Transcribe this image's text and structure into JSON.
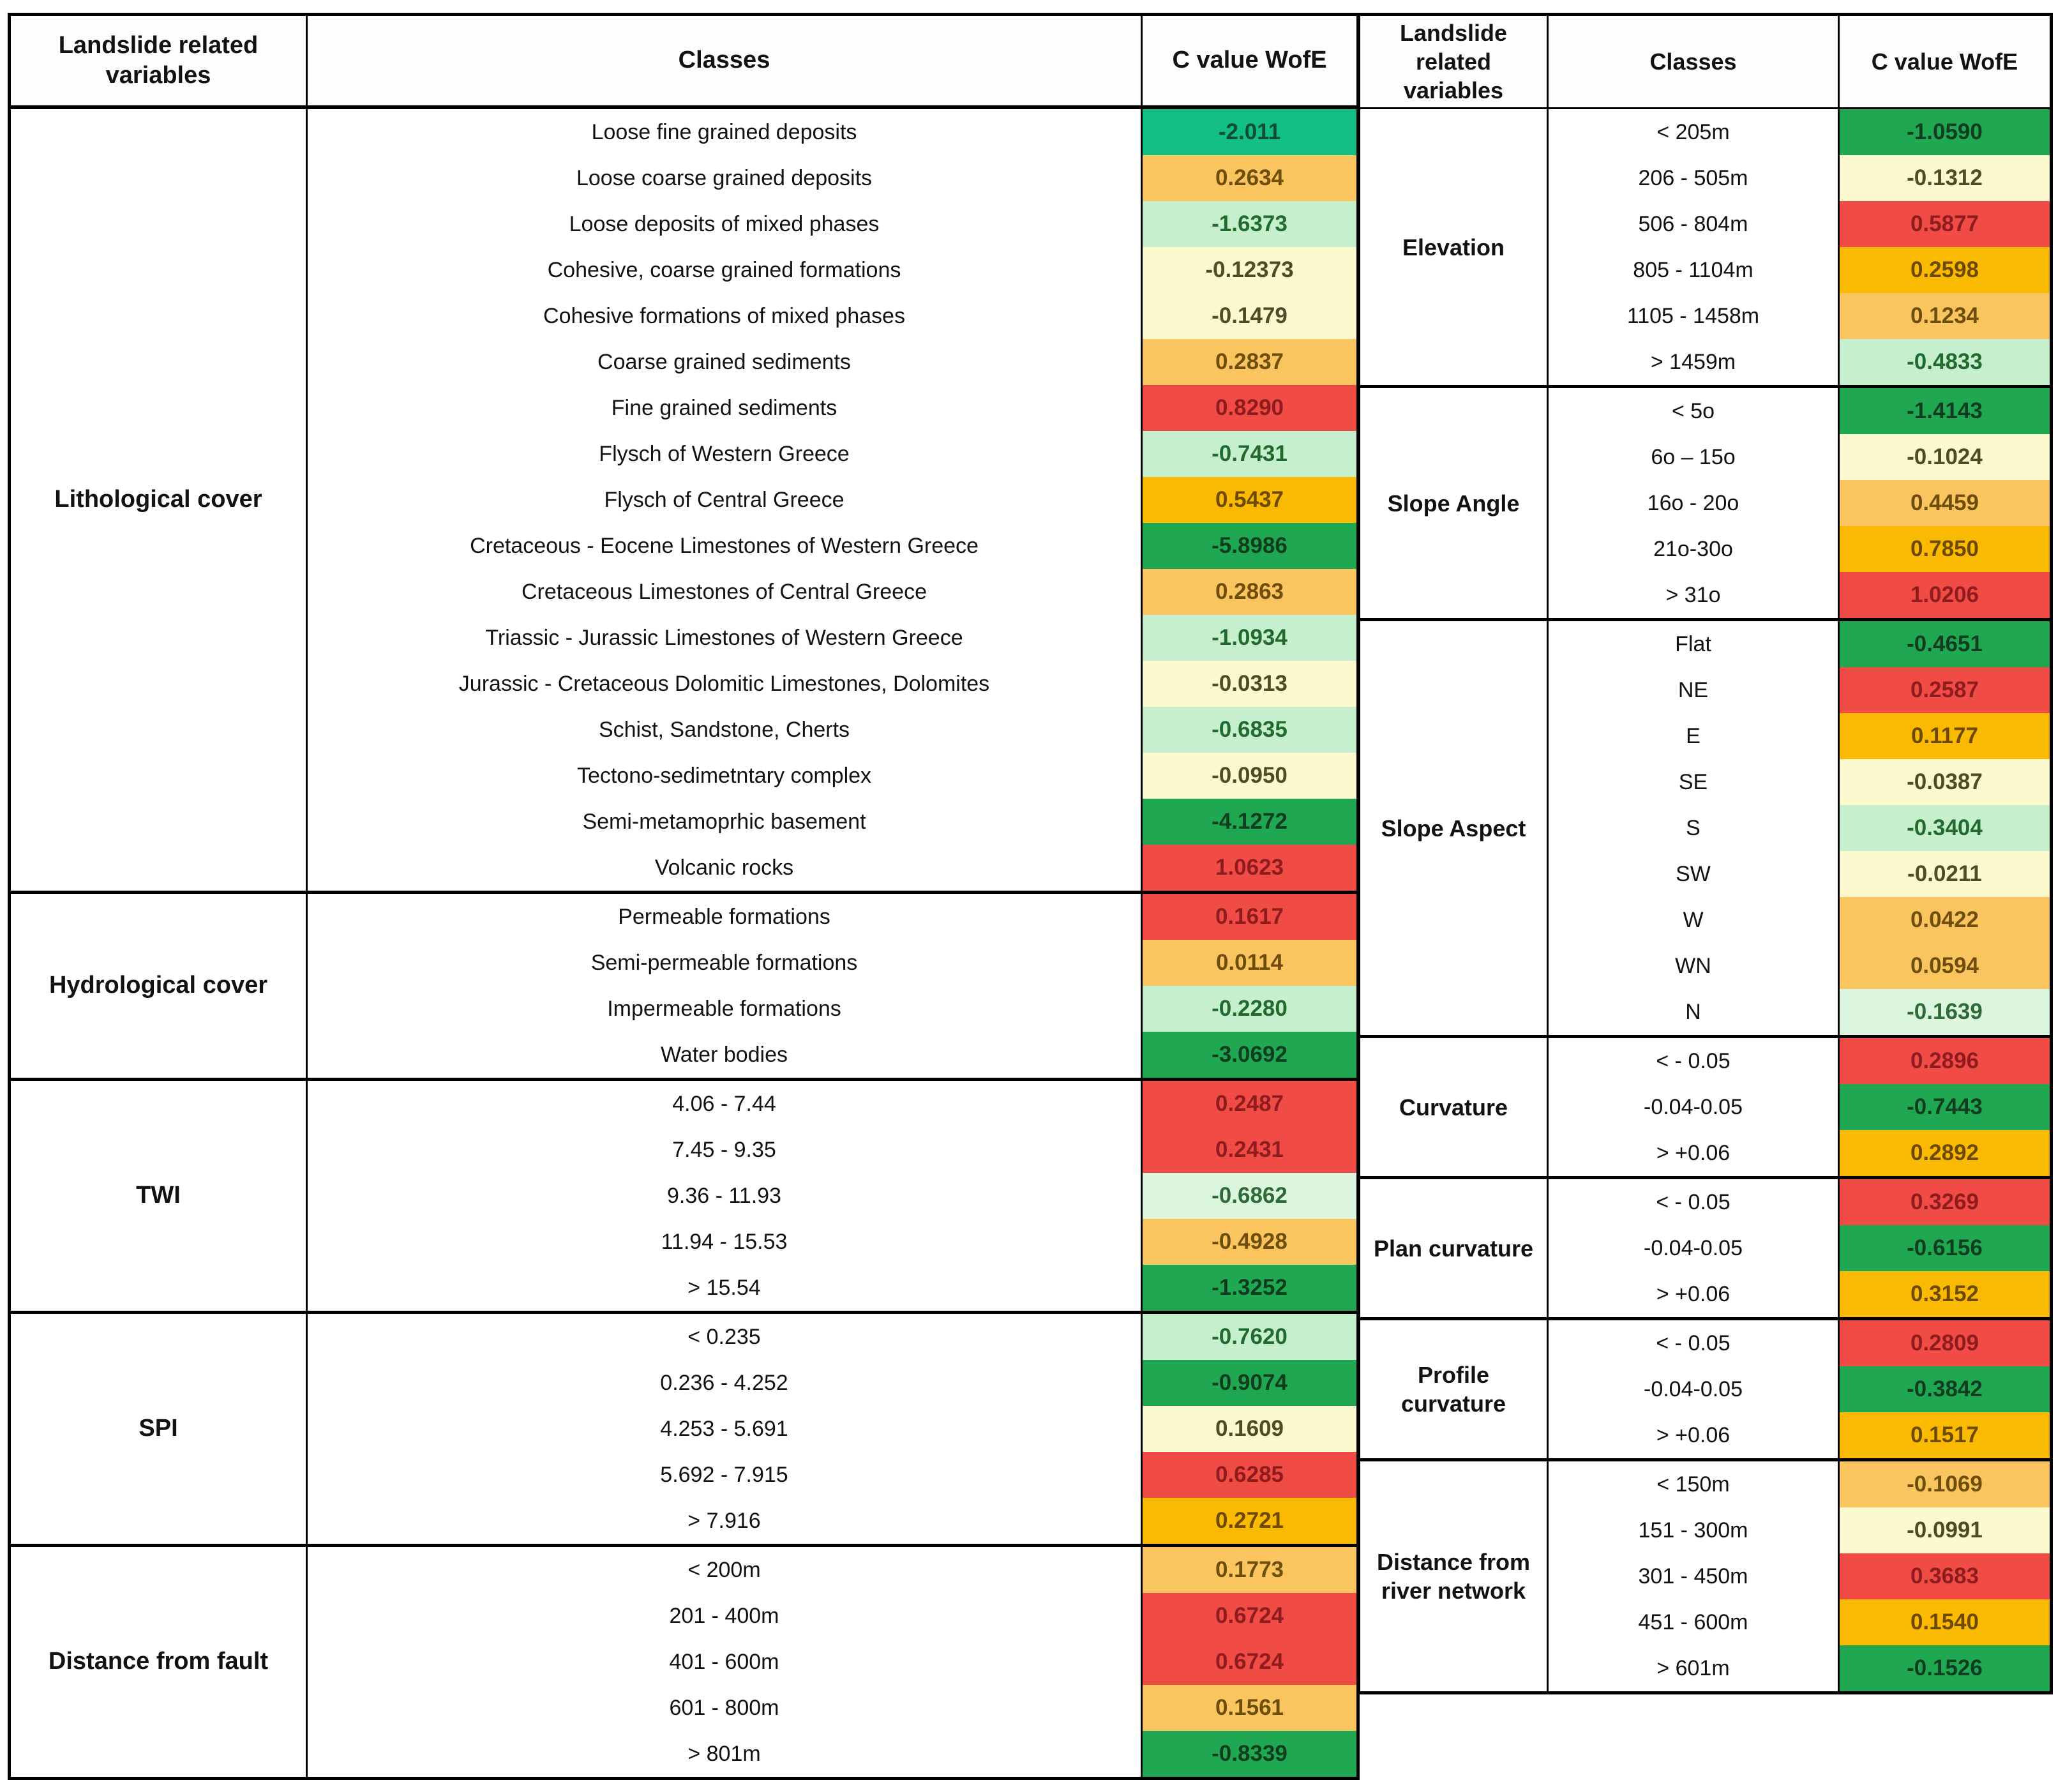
{
  "headers": [
    "Landslide related variables",
    "Classes",
    "C value WofE"
  ],
  "palette": {
    "teal": "#10BE86",
    "green": "#20A751",
    "lightgreen": "#C6EFCE",
    "palegreen": "#DCF5DF",
    "paleyellow": "#FCF9CE",
    "lightorange": "#FAC45F",
    "amber": "#FBBA02",
    "red": "#F14B46"
  },
  "text_colors": {
    "teal": "#0A4D33",
    "green": "#103D20",
    "lightgreen": "#226B2F",
    "palegreen": "#2E6B38",
    "paleyellow": "#4E4C28",
    "lightorange": "#6E4E0B",
    "amber": "#6E4A00",
    "red": "#8E1C1F"
  },
  "left_table": {
    "groups": [
      {
        "variable": "Lithological cover",
        "rows": [
          {
            "cls": "Loose fine grained deposits",
            "value": "-2.011",
            "color": "teal"
          },
          {
            "cls": "Loose coarse grained deposits",
            "value": "0.2634",
            "color": "lightorange"
          },
          {
            "cls": "Loose deposits of mixed phases",
            "value": "-1.6373",
            "color": "lightgreen"
          },
          {
            "cls": "Cohesive, coarse grained formations",
            "value": "-0.12373",
            "color": "paleyellow"
          },
          {
            "cls": "Cohesive formations of mixed phases",
            "value": "-0.1479",
            "color": "paleyellow"
          },
          {
            "cls": "Coarse grained sediments",
            "value": "0.2837",
            "color": "lightorange"
          },
          {
            "cls": "Fine grained sediments",
            "value": "0.8290",
            "color": "red"
          },
          {
            "cls": "Flysch of Western Greece",
            "value": "-0.7431",
            "color": "lightgreen"
          },
          {
            "cls": "Flysch of Central Greece",
            "value": "0.5437",
            "color": "amber"
          },
          {
            "cls": "Cretaceous - Eocene Limestones of Western Greece",
            "value": "-5.8986",
            "color": "green"
          },
          {
            "cls": "Cretaceous Limestones of Central Greece",
            "value": "0.2863",
            "color": "lightorange"
          },
          {
            "cls": "Triassic - Jurassic Limestones of Western Greece",
            "value": "-1.0934",
            "color": "lightgreen"
          },
          {
            "cls": "Jurassic - Cretaceous Dolomitic Limestones, Dolomites",
            "value": "-0.0313",
            "color": "paleyellow"
          },
          {
            "cls": "Schist, Sandstone, Cherts",
            "value": "-0.6835",
            "color": "lightgreen"
          },
          {
            "cls": "Tectono-sedimetntary complex",
            "value": "-0.0950",
            "color": "paleyellow"
          },
          {
            "cls": "Semi-metamoprhic basement",
            "value": "-4.1272",
            "color": "green"
          },
          {
            "cls": "Volcanic rocks",
            "value": "1.0623",
            "color": "red"
          }
        ]
      },
      {
        "variable": "Hydrological cover",
        "rows": [
          {
            "cls": "Permeable formations",
            "value": "0.1617",
            "color": "red"
          },
          {
            "cls": "Semi-permeable formations",
            "value": "0.0114",
            "color": "lightorange"
          },
          {
            "cls": "Impermeable formations",
            "value": "-0.2280",
            "color": "lightgreen"
          },
          {
            "cls": "Water bodies",
            "value": "-3.0692",
            "color": "green"
          }
        ]
      },
      {
        "variable": "TWI",
        "rows": [
          {
            "cls": "4.06 - 7.44",
            "value": "0.2487",
            "color": "red"
          },
          {
            "cls": "7.45 - 9.35",
            "value": "0.2431",
            "color": "red"
          },
          {
            "cls": "9.36 - 11.93",
            "value": "-0.6862",
            "color": "palegreen"
          },
          {
            "cls": "11.94 - 15.53",
            "value": "-0.4928",
            "color": "lightorange"
          },
          {
            "cls": "> 15.54",
            "value": "-1.3252",
            "color": "green"
          }
        ]
      },
      {
        "variable": "SPI",
        "rows": [
          {
            "cls": "< 0.235",
            "value": "-0.7620",
            "color": "lightgreen"
          },
          {
            "cls": "0.236 - 4.252",
            "value": "-0.9074",
            "color": "green"
          },
          {
            "cls": "4.253 - 5.691",
            "value": "0.1609",
            "color": "paleyellow"
          },
          {
            "cls": "5.692 - 7.915",
            "value": "0.6285",
            "color": "red"
          },
          {
            "cls": "> 7.916",
            "value": "0.2721",
            "color": "amber"
          }
        ]
      },
      {
        "variable": "Distance from fault",
        "rows": [
          {
            "cls": "< 200m",
            "value": "0.1773",
            "color": "lightorange"
          },
          {
            "cls": "201 - 400m",
            "value": "0.6724",
            "color": "red"
          },
          {
            "cls": "401 - 600m",
            "value": "0.6724",
            "color": "red"
          },
          {
            "cls": "601 - 800m",
            "value": "0.1561",
            "color": "lightorange"
          },
          {
            "cls": "> 801m",
            "value": "-0.8339",
            "color": "green"
          }
        ]
      }
    ]
  },
  "right_table": {
    "groups": [
      {
        "variable": "Elevation",
        "rows": [
          {
            "cls": "< 205m",
            "value": "-1.0590",
            "color": "green"
          },
          {
            "cls": "206 - 505m",
            "value": "-0.1312",
            "color": "paleyellow"
          },
          {
            "cls": "506 - 804m",
            "value": "0.5877",
            "color": "red"
          },
          {
            "cls": "805 - 1104m",
            "value": "0.2598",
            "color": "amber"
          },
          {
            "cls": "1105 - 1458m",
            "value": "0.1234",
            "color": "lightorange"
          },
          {
            "cls": "> 1459m",
            "value": "-0.4833",
            "color": "lightgreen"
          }
        ]
      },
      {
        "variable": "Slope Angle",
        "rows": [
          {
            "cls": "< 5o",
            "value": "-1.4143",
            "color": "green"
          },
          {
            "cls": "6o – 15o",
            "value": "-0.1024",
            "color": "paleyellow"
          },
          {
            "cls": "16o - 20o",
            "value": "0.4459",
            "color": "lightorange"
          },
          {
            "cls": "21o-30o",
            "value": "0.7850",
            "color": "amber"
          },
          {
            "cls": "> 31o",
            "value": "1.0206",
            "color": "red"
          }
        ]
      },
      {
        "variable": "Slope Aspect",
        "rows": [
          {
            "cls": "Flat",
            "value": "-0.4651",
            "color": "green"
          },
          {
            "cls": "NE",
            "value": "0.2587",
            "color": "red"
          },
          {
            "cls": "E",
            "value": "0.1177",
            "color": "amber"
          },
          {
            "cls": "SE",
            "value": "-0.0387",
            "color": "paleyellow"
          },
          {
            "cls": "S",
            "value": "-0.3404",
            "color": "lightgreen"
          },
          {
            "cls": "SW",
            "value": "-0.0211",
            "color": "paleyellow"
          },
          {
            "cls": "W",
            "value": "0.0422",
            "color": "lightorange"
          },
          {
            "cls": "WN",
            "value": "0.0594",
            "color": "lightorange"
          },
          {
            "cls": "N",
            "value": "-0.1639",
            "color": "palegreen"
          }
        ]
      },
      {
        "variable": "Curvature",
        "rows": [
          {
            "cls": "< - 0.05",
            "value": "0.2896",
            "color": "red"
          },
          {
            "cls": "-0.04-0.05",
            "value": "-0.7443",
            "color": "green"
          },
          {
            "cls": "> +0.06",
            "value": "0.2892",
            "color": "amber"
          }
        ]
      },
      {
        "variable": "Plan curvature",
        "rows": [
          {
            "cls": "< - 0.05",
            "value": "0.3269",
            "color": "red"
          },
          {
            "cls": "-0.04-0.05",
            "value": "-0.6156",
            "color": "green"
          },
          {
            "cls": "> +0.06",
            "value": "0.3152",
            "color": "amber"
          }
        ]
      },
      {
        "variable": "Profile curvature",
        "rows": [
          {
            "cls": "< - 0.05",
            "value": "0.2809",
            "color": "red"
          },
          {
            "cls": "-0.04-0.05",
            "value": "-0.3842",
            "color": "green"
          },
          {
            "cls": "> +0.06",
            "value": "0.1517",
            "color": "amber"
          }
        ]
      },
      {
        "variable": "Distance from river network",
        "rows": [
          {
            "cls": "< 150m",
            "value": "-0.1069",
            "color": "lightorange"
          },
          {
            "cls": "151 - 300m",
            "value": "-0.0991",
            "color": "paleyellow"
          },
          {
            "cls": "301 - 450m",
            "value": "0.3683",
            "color": "red"
          },
          {
            "cls": "451 - 600m",
            "value": "0.1540",
            "color": "amber"
          },
          {
            "cls": "> 601m",
            "value": "-0.1526",
            "color": "green"
          }
        ]
      }
    ]
  }
}
